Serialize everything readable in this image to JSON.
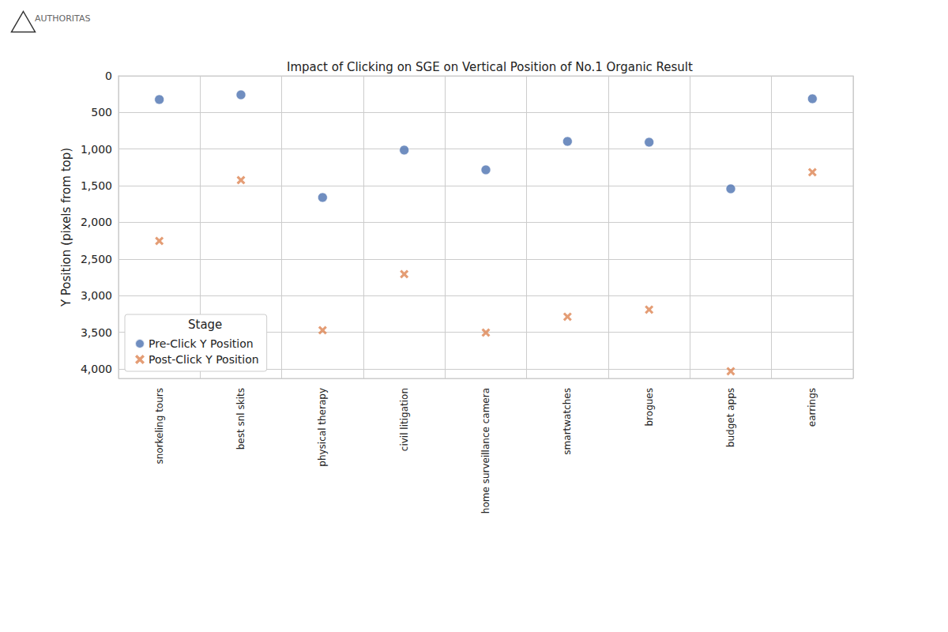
{
  "chart_data": {
    "type": "scatter",
    "title": "Impact of Clicking on SGE on Vertical Position of No.1 Organic Result",
    "annotation": "AUTHORITAS",
    "y_label": "Y Position (pixels from top)",
    "legend_title": "Stage",
    "categories": [
      "snorkeling tours",
      "best snl skits",
      "physical therapy",
      "civil litigation",
      "home surveillance camera",
      "smartwatches",
      "brogues",
      "budget apps",
      "earrings"
    ],
    "series": [
      {
        "name": "Pre-Click Y Position",
        "color": "#4c72b0",
        "marker": "circle",
        "values": [
          323,
          259,
          1660,
          1013,
          1283,
          895,
          906,
          1542,
          313
        ]
      },
      {
        "name": "Post-Click Y Position",
        "color": "#dd8452",
        "marker": "x",
        "values": [
          2253,
          1423,
          3472,
          2706,
          3504,
          3288,
          3191,
          4032,
          1315
        ]
      }
    ],
    "ylim": [
      0,
      4130
    ],
    "yticks": [
      0,
      500,
      1000,
      1500,
      2000,
      2500,
      3000,
      3500,
      4000
    ],
    "grid": true,
    "legend": "lower left"
  }
}
